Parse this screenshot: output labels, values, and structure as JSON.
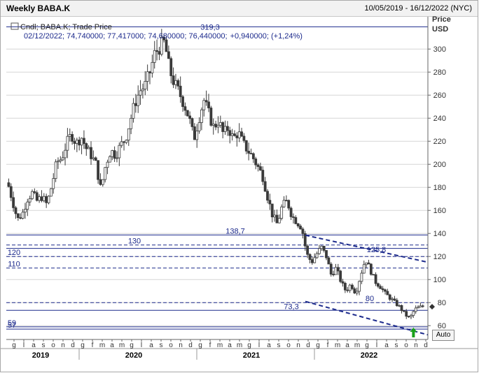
{
  "header": {
    "title": "Weekly BABA.K",
    "date_range": "10/05/2019 - 16/12/2022 (NYC)"
  },
  "legend": {
    "line1": "Cndl; BABA.K; Trade Price",
    "line2_ohlc": "02/12/2022; 74,740000; 77,417000; 74,680000; 76,440000;",
    "line2_change": "+0,940000; (+1,24%)"
  },
  "axis": {
    "price_label": "Price",
    "currency_label": "USD",
    "auto_button": "Auto"
  },
  "colors": {
    "accent": "#1c2a8c",
    "candle": "#3a3a3a",
    "grid": "#d6d6d6",
    "marker_arrow": "#1aa01a"
  },
  "chart_data": {
    "type": "candlestick",
    "title": "Weekly BABA.K",
    "ylabel": "Price USD",
    "ylim": [
      48,
      328
    ],
    "yticks": [
      60,
      80,
      100,
      120,
      140,
      160,
      180,
      200,
      220,
      240,
      260,
      280,
      300
    ],
    "ytick_labels": [
      "60",
      "80",
      "100",
      "120",
      "140",
      "160",
      "180",
      "200",
      "220",
      "240",
      "260",
      "280",
      "300"
    ],
    "x_range": [
      "2019-05-10",
      "2022-12-16"
    ],
    "months": [
      "g",
      "l",
      "a",
      "s",
      "o",
      "n",
      "d",
      "g",
      "f",
      "m",
      "a",
      "m",
      "g",
      "l",
      "a",
      "s",
      "o",
      "n",
      "d",
      "g",
      "f",
      "m",
      "a",
      "m",
      "g",
      "l",
      "a",
      "s",
      "o",
      "n",
      "d",
      "g",
      "f",
      "m",
      "a",
      "m",
      "g",
      "l",
      "a",
      "s",
      "o",
      "n",
      "d"
    ],
    "years": [
      {
        "label": "2019",
        "start": 0,
        "end": 7
      },
      {
        "label": "2020",
        "start": 7,
        "end": 19
      },
      {
        "label": "2021",
        "start": 19,
        "end": 31
      },
      {
        "label": "2022",
        "start": 31,
        "end": 43
      }
    ],
    "close_path": [
      [
        0,
        184
      ],
      [
        0.5,
        168
      ],
      [
        1,
        152
      ],
      [
        1.5,
        157
      ],
      [
        2,
        170
      ],
      [
        2.5,
        175
      ],
      [
        3,
        168
      ],
      [
        3.5,
        172
      ],
      [
        4,
        165
      ],
      [
        4.5,
        182
      ],
      [
        5,
        202
      ],
      [
        5.5,
        205
      ],
      [
        6,
        218
      ],
      [
        6.5,
        226
      ],
      [
        7,
        218
      ],
      [
        7.5,
        224
      ],
      [
        8,
        214
      ],
      [
        8.5,
        208
      ],
      [
        9,
        200
      ],
      [
        9.5,
        178
      ],
      [
        10,
        200
      ],
      [
        10.5,
        212
      ],
      [
        11,
        208
      ],
      [
        11.5,
        216
      ],
      [
        12,
        222
      ],
      [
        12.5,
        238
      ],
      [
        13,
        254
      ],
      [
        13.5,
        264
      ],
      [
        14,
        268
      ],
      [
        14.5,
        280
      ],
      [
        15,
        296
      ],
      [
        15.5,
        302
      ],
      [
        16,
        306
      ],
      [
        16.5,
        282
      ],
      [
        17,
        270
      ],
      [
        17.5,
        262
      ],
      [
        18,
        252
      ],
      [
        18.5,
        240
      ],
      [
        19,
        222
      ],
      [
        19.5,
        240
      ],
      [
        20,
        256
      ],
      [
        20.5,
        244
      ],
      [
        21,
        232
      ],
      [
        21.5,
        238
      ],
      [
        22,
        226
      ],
      [
        22.5,
        232
      ],
      [
        23,
        222
      ],
      [
        23.5,
        228
      ],
      [
        24,
        218
      ],
      [
        24.5,
        212
      ],
      [
        25,
        206
      ],
      [
        25.5,
        198
      ],
      [
        26,
        190
      ],
      [
        26.5,
        172
      ],
      [
        27,
        156
      ],
      [
        27.5,
        148
      ],
      [
        28,
        164
      ],
      [
        28.5,
        168
      ],
      [
        29,
        155
      ],
      [
        29.5,
        150
      ],
      [
        30,
        145
      ],
      [
        30.5,
        122
      ],
      [
        31,
        115
      ],
      [
        31.5,
        122
      ],
      [
        32,
        128
      ],
      [
        32.5,
        120
      ],
      [
        33,
        104
      ],
      [
        33.5,
        110
      ],
      [
        34,
        98
      ],
      [
        34.5,
        90
      ],
      [
        35,
        96
      ],
      [
        35.5,
        88
      ],
      [
        36,
        104
      ],
      [
        36.5,
        118
      ],
      [
        37,
        108
      ],
      [
        37.5,
        98
      ],
      [
        38,
        94
      ],
      [
        38.5,
        88
      ],
      [
        39,
        84
      ],
      [
        39.5,
        80
      ],
      [
        40,
        76
      ],
      [
        40.5,
        70
      ],
      [
        41,
        66
      ],
      [
        41.5,
        74
      ],
      [
        42,
        76
      ],
      [
        42.5,
        77
      ]
    ],
    "last_close": 76.44,
    "high_marker": {
      "label": "319,3",
      "value": 319.3
    },
    "levels": [
      {
        "value": 138.7,
        "label": "138,7",
        "style": "solid"
      },
      {
        "value": 130,
        "label": "130",
        "style": "dashed"
      },
      {
        "value": 127,
        "label": "",
        "style": "solid"
      },
      {
        "value": 120,
        "label": "120",
        "style": "dashed"
      },
      {
        "value": 110,
        "label": "110",
        "style": "dashed"
      },
      {
        "value": 80,
        "label": "80",
        "style": "dashed"
      },
      {
        "value": 73.3,
        "label": "73,3",
        "style": "solid"
      },
      {
        "value": 59,
        "label": "59",
        "style": "solid"
      },
      {
        "value": 57,
        "label": "57",
        "style": "solid"
      }
    ],
    "trendlines": [
      {
        "label": "125,8",
        "from": {
          "month": 30.5,
          "value": 138.5
        },
        "to": {
          "month": 43,
          "value": 115
        }
      },
      {
        "label": "",
        "from": {
          "month": 30.5,
          "value": 81
        },
        "to": {
          "month": 43,
          "value": 52
        }
      }
    ],
    "grid": true
  }
}
